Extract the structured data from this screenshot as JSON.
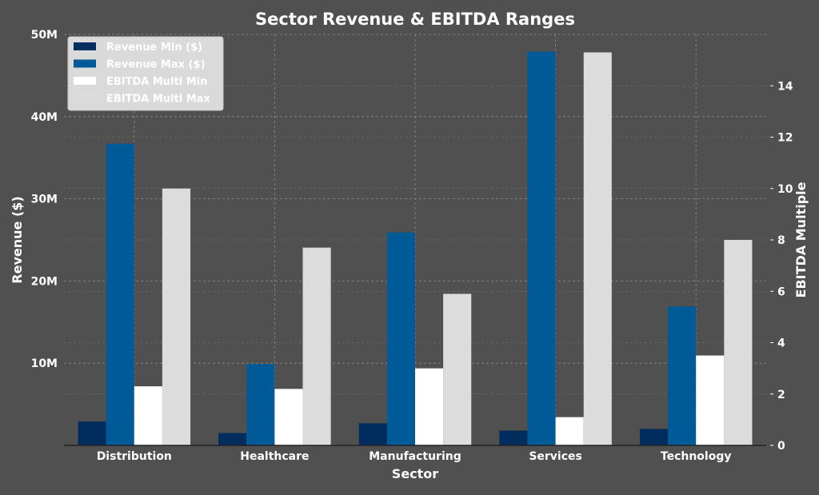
{
  "chart_data": {
    "type": "bar",
    "title": "Sector Revenue & EBITDA Ranges",
    "xlabel": "Sector",
    "ylabel": "Revenue ($)",
    "ylabel_right": "EBITDA Multiple",
    "categories": [
      "Distribution",
      "Healthcare",
      "Manufacturing",
      "Services",
      "Technology"
    ],
    "ylim": [
      0,
      50000000
    ],
    "ylim_right": [
      0,
      16
    ],
    "yticks": [
      {
        "value": 10000000,
        "label": "10M"
      },
      {
        "value": 20000000,
        "label": "20M"
      },
      {
        "value": 30000000,
        "label": "30M"
      },
      {
        "value": 40000000,
        "label": "40M"
      },
      {
        "value": 50000000,
        "label": "50M"
      }
    ],
    "yticks_right": [
      "0",
      "2",
      "4",
      "6",
      "8",
      "10",
      "12",
      "14"
    ],
    "grid": true,
    "legend_position": "top-left",
    "series": [
      {
        "name": "Revenue Min ($)",
        "axis": "left",
        "color": "#002d5e",
        "values": [
          2900000,
          1500000,
          2700000,
          1800000,
          2000000
        ]
      },
      {
        "name": "Revenue Max ($)",
        "axis": "left",
        "color": "#005a98",
        "values": [
          36700000,
          9900000,
          25900000,
          47900000,
          16900000
        ]
      },
      {
        "name": "EBITDA Multi Min",
        "axis": "right",
        "color": "#ffffff",
        "values": [
          2.3,
          2.2,
          3.0,
          1.1,
          3.5
        ]
      },
      {
        "name": "EBITDA Multi Max",
        "axis": "right",
        "color": "#dcdcdc",
        "values": [
          10.0,
          7.7,
          5.9,
          15.3,
          8.0
        ]
      }
    ]
  }
}
